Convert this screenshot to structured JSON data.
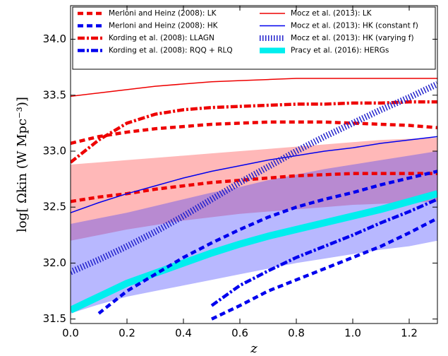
{
  "chart_data": {
    "type": "line",
    "xlabel": "z",
    "ylabel": "log[ Ωkin (W Mpc⁻³)]",
    "xlim": [
      0,
      1.3
    ],
    "ylim": [
      31.46,
      34.3
    ],
    "xticks": [
      {
        "value": 0,
        "label": "0.0"
      },
      0.2,
      0.4,
      0.6,
      0.8,
      {
        "value": 1,
        "label": "1.0"
      },
      1.2
    ],
    "yticks": [
      31.5,
      {
        "value": 32,
        "label": "32.0"
      },
      32.5,
      {
        "value": 33,
        "label": "33.0"
      },
      33.5,
      {
        "value": 34,
        "label": "34.0"
      }
    ],
    "x": [
      0,
      0.1,
      0.2,
      0.3,
      0.4,
      0.5,
      0.6,
      0.7,
      0.8,
      0.9,
      1.0,
      1.1,
      1.2,
      1.3
    ],
    "bands": [
      {
        "color": "#ff3333",
        "upper": [
          32.88,
          32.9,
          32.92,
          32.94,
          32.96,
          32.98,
          33.0,
          33.02,
          33.04,
          33.06,
          33.08,
          33.1,
          33.11,
          33.12
        ],
        "lower": [
          32.2,
          32.25,
          32.3,
          32.34,
          32.38,
          32.41,
          32.44,
          32.46,
          32.48,
          32.5,
          32.52,
          32.53,
          32.54,
          32.55
        ]
      },
      {
        "color": "#3333ff",
        "upper": [
          32.35,
          32.4,
          32.45,
          32.51,
          32.57,
          32.63,
          32.68,
          32.74,
          32.79,
          32.84,
          32.88,
          32.92,
          32.96,
          33.0
        ],
        "lower": [
          31.55,
          31.63,
          31.7,
          31.75,
          31.8,
          31.85,
          31.9,
          31.95,
          32.0,
          32.04,
          32.08,
          32.12,
          32.15,
          32.2
        ]
      }
    ],
    "series": [
      {
        "name": "Merloni and Heinz (2008): LK",
        "color": "#ee0000",
        "style": "dashed",
        "values": [
          [
            33.07,
            33.13,
            33.17,
            33.2,
            33.22,
            33.24,
            33.25,
            33.26,
            33.26,
            33.26,
            33.25,
            33.24,
            33.23,
            33.21
          ],
          [
            32.55,
            32.59,
            32.62,
            32.66,
            32.69,
            32.72,
            32.74,
            32.76,
            32.78,
            32.79,
            32.8,
            32.8,
            32.8,
            32.8
          ]
        ]
      },
      {
        "name": "Merloni and Heinz (2008): HK",
        "color": "#0000ee",
        "style": "dashed",
        "values": [
          [
            null,
            31.55,
            31.75,
            31.9,
            32.05,
            32.18,
            32.3,
            32.41,
            32.5,
            32.57,
            32.63,
            32.7,
            32.76,
            32.82
          ],
          [
            null,
            null,
            null,
            null,
            null,
            31.5,
            31.62,
            31.75,
            31.85,
            31.95,
            32.05,
            32.15,
            32.27,
            32.4
          ]
        ]
      },
      {
        "name": "Kording et al. (2008): LLAGN",
        "color": "#ee0000",
        "style": "dashdot",
        "values": [
          [
            32.9,
            33.1,
            33.25,
            33.33,
            33.37,
            33.39,
            33.4,
            33.41,
            33.42,
            33.42,
            33.43,
            33.43,
            33.44,
            33.44
          ]
        ]
      },
      {
        "name": "Kording et al. (2008): RQQ + RLQ",
        "color": "#0000ee",
        "style": "dashdot",
        "values": [
          [
            null,
            null,
            null,
            null,
            null,
            31.62,
            31.8,
            31.93,
            32.05,
            32.15,
            32.25,
            32.36,
            32.46,
            32.57
          ]
        ]
      },
      {
        "name": "Mocz et al. (2013): LK",
        "color": "#ee0000",
        "style": "solid",
        "values": [
          [
            33.49,
            33.52,
            33.55,
            33.58,
            33.6,
            33.62,
            33.63,
            33.64,
            33.65,
            33.65,
            33.65,
            33.65,
            33.65,
            33.65
          ]
        ]
      },
      {
        "name": "Mocz et al. (2013): HK (constant f)",
        "color": "#0000ee",
        "style": "solid",
        "values": [
          [
            32.45,
            32.54,
            32.62,
            32.69,
            32.76,
            32.82,
            32.87,
            32.92,
            32.96,
            33.0,
            33.03,
            33.07,
            33.1,
            33.13
          ]
        ]
      },
      {
        "name": "Mocz et al. (2013): HK (varying f)",
        "color": "#2222cc",
        "style": "hatched",
        "values": [
          [
            31.92,
            32.03,
            32.15,
            32.28,
            32.42,
            32.57,
            32.72,
            32.86,
            33.0,
            33.13,
            33.25,
            33.37,
            33.48,
            33.6
          ]
        ]
      },
      {
        "name": "Pracy et al. (2016): HERGs",
        "color": "#00eeee",
        "style": "thick",
        "values": [
          [
            31.58,
            31.7,
            31.82,
            31.91,
            32.0,
            32.09,
            32.17,
            32.24,
            32.3,
            32.36,
            32.42,
            32.48,
            32.55,
            32.62
          ]
        ]
      }
    ]
  }
}
